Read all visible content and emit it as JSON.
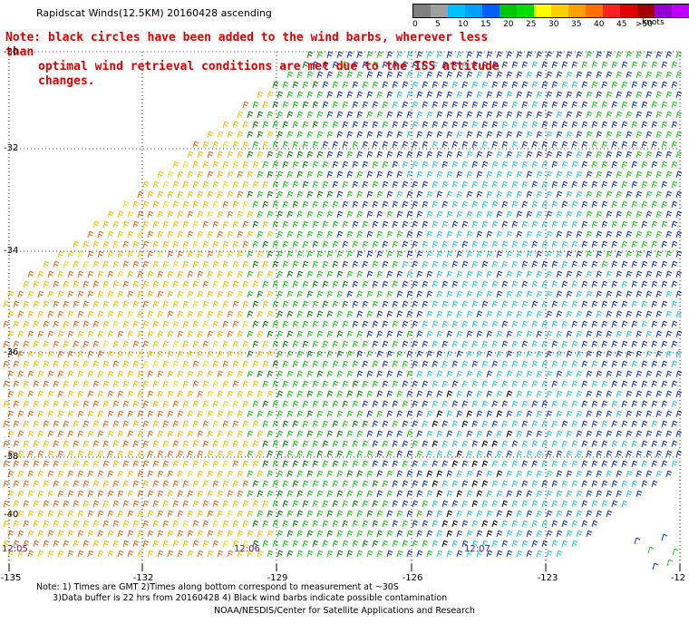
{
  "title": "Rapidscat Winds(12.5KM) 20160428 ascending",
  "note": {
    "line1": "Note: black circles have been added to the wind barbs, wherever less than",
    "line2": "optimal wind retrieval conditions are met due to the ISS attitude changes."
  },
  "legend": {
    "labels": [
      "0",
      "5",
      "10",
      "15",
      "20",
      "25",
      "30",
      "35",
      "40",
      "45",
      ">50"
    ],
    "units": "knots",
    "colors": [
      "#808080",
      "#a0a0a0",
      "#00bfff",
      "#00a0ff",
      "#0060ff",
      "#00c800",
      "#00e000",
      "#ffff00",
      "#ffd000",
      "#ffa000",
      "#ff7000",
      "#ff2020",
      "#e00000",
      "#a00000",
      "#9400d3",
      "#c000ff",
      "#6a0dad"
    ]
  },
  "lat_labels": [
    "-30",
    "-32",
    "-34",
    "-36",
    "-38",
    "-40"
  ],
  "lon_labels": [
    "-135",
    "-132",
    "-129",
    "-126",
    "-123",
    "-12"
  ],
  "times": [
    "12:05",
    "12:06",
    "12:07"
  ],
  "footnotes": {
    "line1": "Note: 1) Times are GMT 2)Times along bottom correspond to measurement at ~30S",
    "line2": "      3)Data buffer is 22 hrs from 20160428 4) Black wind barbs indicate possible contamination"
  },
  "credit": "NOAA/NESDIS/Center for Satellite Applications and Research",
  "barb_colors": {
    "orange": "#e8681a",
    "gold": "#f2c200",
    "yellow": "#f0e020",
    "green": "#18c818",
    "darkgreen": "#0a7a0a",
    "blue": "#1030c8",
    "cyan": "#28c8d8",
    "black": "#000000"
  }
}
